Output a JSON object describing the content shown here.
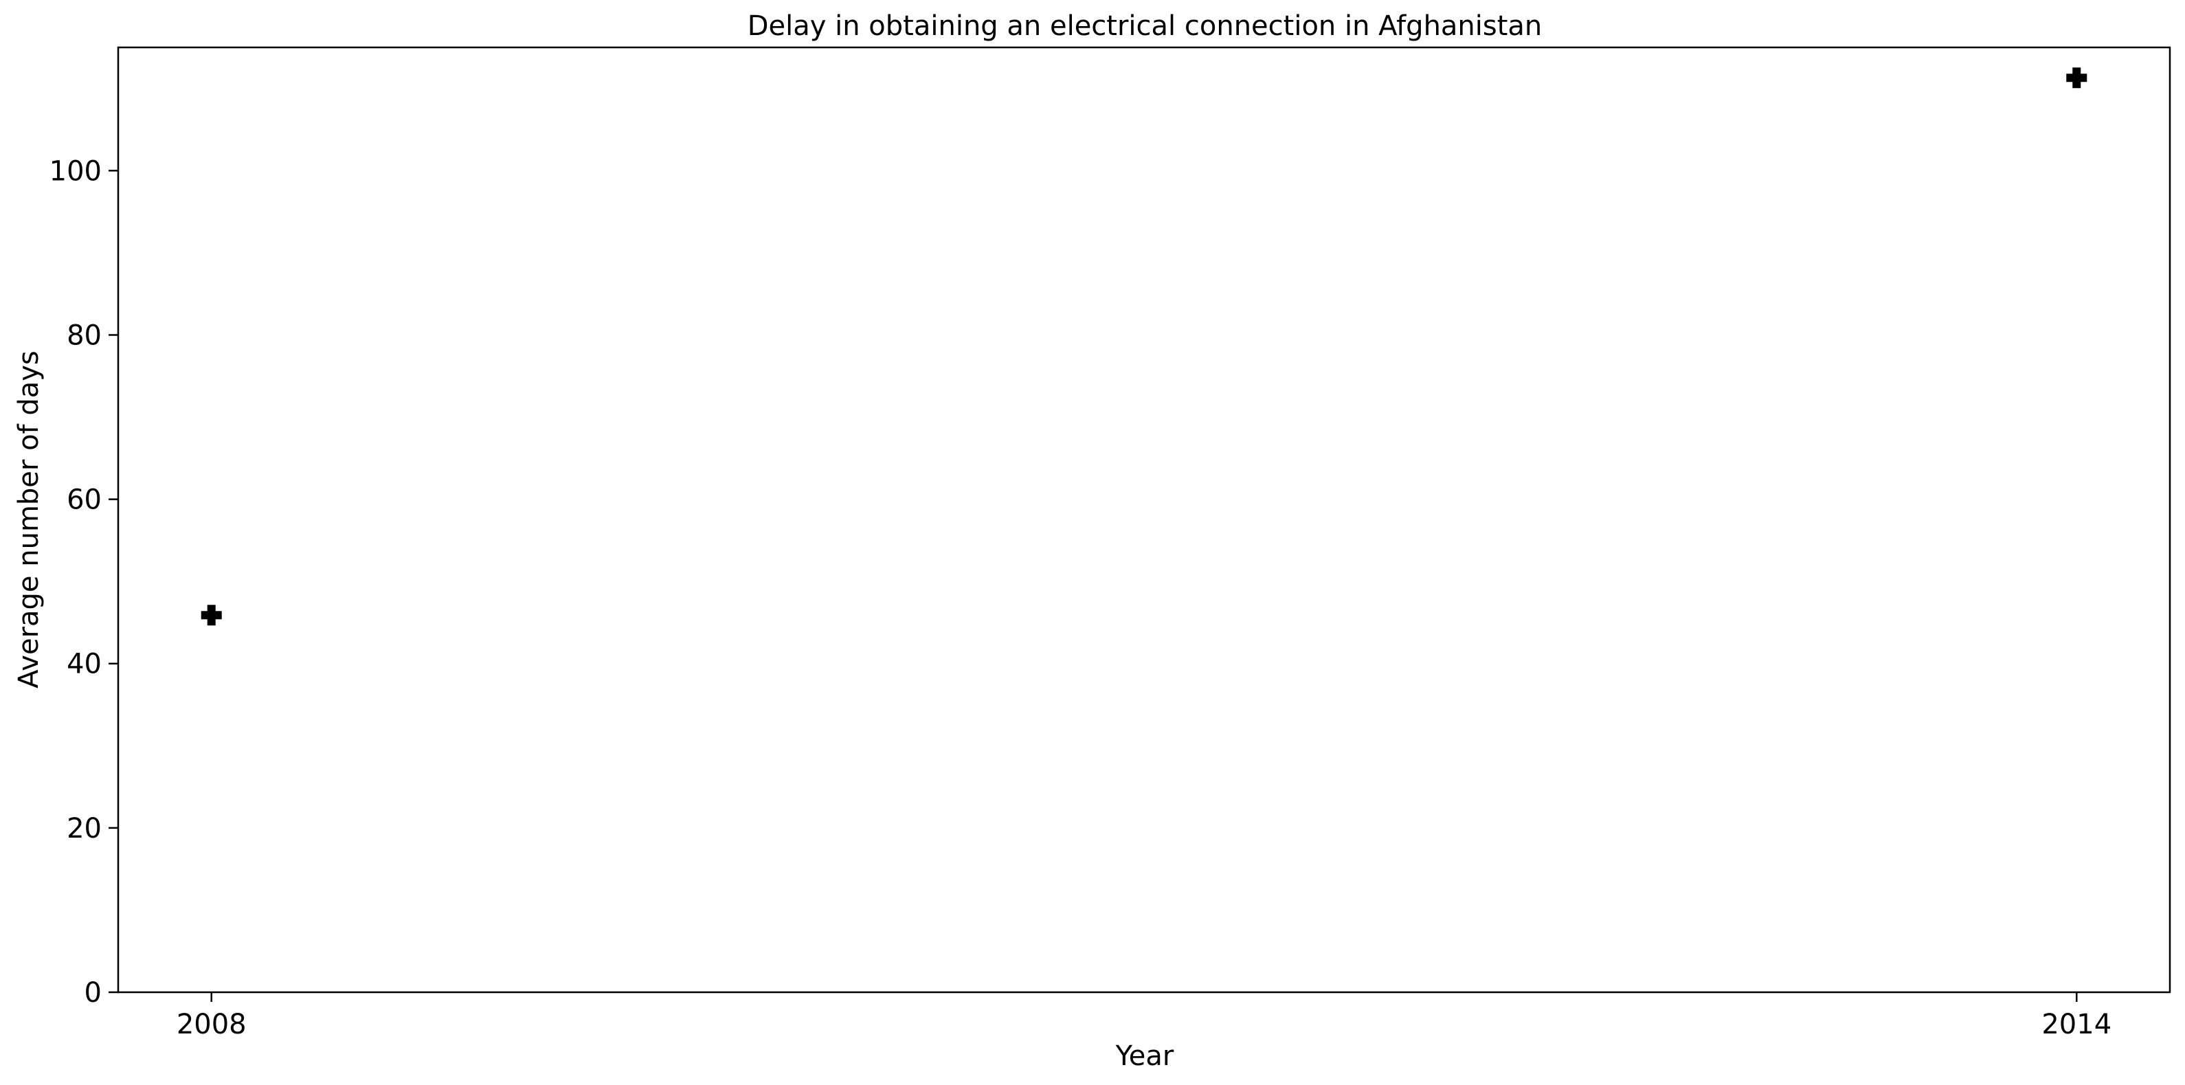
{
  "chart_data": {
    "type": "scatter",
    "title": "Delay in obtaining an electrical connection in Afghanistan",
    "xlabel": "Year",
    "ylabel": "Average number of days",
    "x_ticks": [
      "2008",
      "2014"
    ],
    "y_ticks": [
      "0",
      "20",
      "40",
      "60",
      "80",
      "100"
    ],
    "ylim": [
      0,
      115
    ],
    "xlim": [
      2007.7,
      2014.3
    ],
    "grid": false,
    "marker": "plus-filled",
    "marker_color": "#000000",
    "points": [
      {
        "x": 2008,
        "y": 45.9
      },
      {
        "x": 2014,
        "y": 111.3
      }
    ]
  }
}
